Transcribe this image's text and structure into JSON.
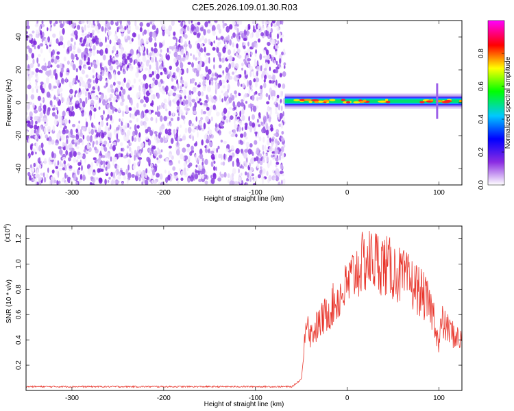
{
  "title": "C2E5.2026.109.01.30.R03",
  "chart_data": [
    {
      "type": "heatmap",
      "xlabel": "Height of straight line (km)",
      "ylabel": "Frequency (Hz)",
      "xlim": [
        -350,
        125
      ],
      "ylim": [
        -50,
        50
      ],
      "xticks": [
        -300,
        -200,
        -100,
        0,
        100
      ],
      "yticks": [
        -40,
        -20,
        0,
        20,
        40
      ],
      "noise_region_x": [
        -350,
        -68
      ],
      "signal_region_x": [
        -68,
        125
      ],
      "signal_center_frequency": 1,
      "colorbar": {
        "label": "Normalized spectral amplitude",
        "range": [
          0.0,
          1.0
        ],
        "ticks": [
          0.0,
          0.2,
          0.4,
          0.6,
          0.8
        ],
        "colors": [
          "#ffffff",
          "#8a2be2",
          "#0000ff",
          "#00c8ff",
          "#00ff00",
          "#ffff00",
          "#ff0000",
          "#ff00ff"
        ]
      }
    },
    {
      "type": "line",
      "xlabel": "Height of straight line (km)",
      "ylabel": "SNR (10 * v/v)",
      "scale_label": "(x10",
      "scale_exponent": "4",
      "xlim": [
        -350,
        125
      ],
      "ylim": [
        0,
        13000
      ],
      "xticks": [
        -300,
        -200,
        -100,
        0,
        100
      ],
      "yticks": [
        2000,
        4000,
        6000,
        8000,
        10000,
        12000
      ],
      "ytick_labels": [
        "0.2",
        "0.4",
        "0.6",
        "0.8",
        "1.0",
        "1.2"
      ],
      "series": [
        {
          "color": "#e8342a",
          "x": [
            -350,
            -100,
            -60,
            -50,
            -47,
            -45,
            -42,
            -40,
            -35,
            -30,
            -25,
            -20,
            -15,
            -10,
            -5,
            0,
            5,
            10,
            15,
            20,
            25,
            30,
            35,
            40,
            45,
            50,
            55,
            60,
            65,
            70,
            75,
            80,
            85,
            90,
            95,
            98,
            100,
            103,
            105,
            110,
            115,
            120,
            125
          ],
          "values": [
            300,
            300,
            300,
            900,
            3000,
            6500,
            5500,
            4500,
            5000,
            5500,
            6000,
            6500,
            7000,
            7500,
            8000,
            8500,
            9200,
            9800,
            10200,
            10500,
            10600,
            10600,
            10500,
            10300,
            10000,
            9800,
            9500,
            9200,
            9000,
            8700,
            8400,
            8000,
            7500,
            6800,
            6000,
            4500,
            3500,
            5800,
            5300,
            5000,
            4600,
            4300,
            4000
          ]
        }
      ]
    }
  ]
}
